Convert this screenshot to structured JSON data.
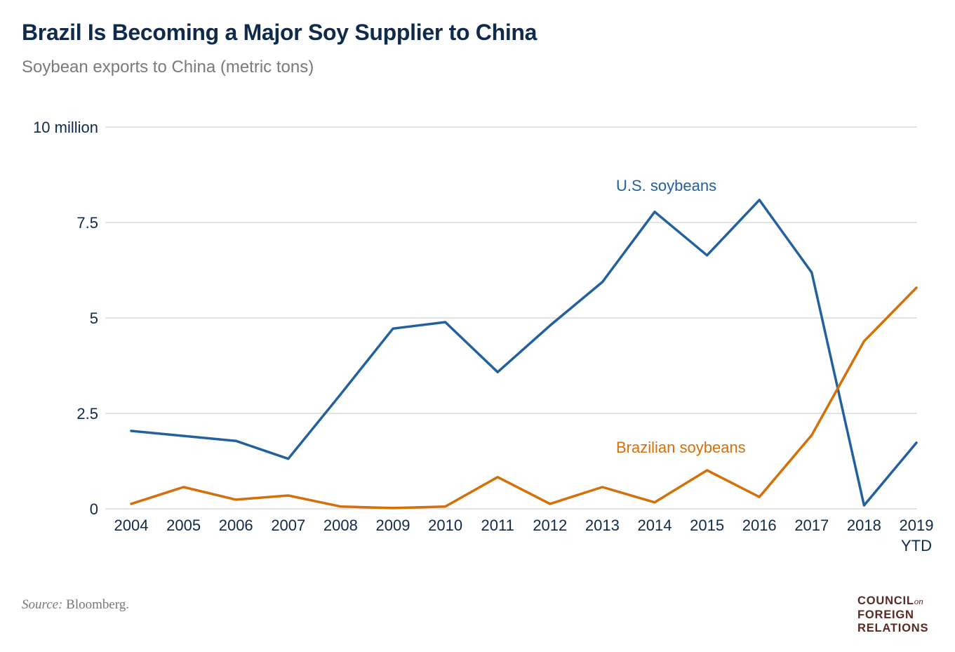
{
  "chart_data": {
    "type": "line",
    "title": "Brazil Is Becoming a Major Soy Supplier to China",
    "subtitle": "Soybean exports to China (metric tons)",
    "categories": [
      "2004",
      "2005",
      "2006",
      "2007",
      "2008",
      "2009",
      "2010",
      "2011",
      "2012",
      "2013",
      "2014",
      "2015",
      "2016",
      "2017",
      "2018",
      "2019"
    ],
    "category_sublabels": {
      "2019": "YTD"
    },
    "yticks": [
      {
        "value": 0,
        "label": "0"
      },
      {
        "value": 2.5,
        "label": "2.5"
      },
      {
        "value": 5,
        "label": "5"
      },
      {
        "value": 7.5,
        "label": "7.5"
      },
      {
        "value": 10,
        "label": "10 million"
      }
    ],
    "ylim": [
      0,
      10
    ],
    "grid": true,
    "series": [
      {
        "name": "U.S. soybeans",
        "color": "#23609e",
        "values": [
          2.04,
          1.91,
          1.78,
          1.31,
          3.0,
          4.72,
          4.89,
          3.58,
          4.8,
          5.94,
          7.78,
          6.64,
          8.09,
          6.19,
          0.09,
          1.73
        ]
      },
      {
        "name": "Brazilian soybeans",
        "color": "#d46f0a",
        "values": [
          0.13,
          0.57,
          0.24,
          0.35,
          0.06,
          0.02,
          0.06,
          0.83,
          0.13,
          0.57,
          0.17,
          1.01,
          0.31,
          1.93,
          4.39,
          5.79
        ]
      }
    ]
  },
  "footer": {
    "source_label": "Source:",
    "source_text": "Bloomberg.",
    "logo": {
      "line1": "COUNCIL",
      "on": "on",
      "line2": "FOREIGN",
      "line3": "RELATIONS",
      "color": "#5a2a22"
    }
  }
}
